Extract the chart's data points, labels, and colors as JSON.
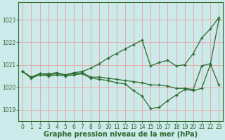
{
  "title": "Graphe pression niveau de la mer (hPa)",
  "hours": [
    0,
    1,
    2,
    3,
    4,
    5,
    6,
    7,
    8,
    9,
    10,
    11,
    12,
    13,
    14,
    15,
    16,
    17,
    18,
    19,
    20,
    21,
    22,
    23
  ],
  "line1": [
    1020.7,
    1020.45,
    1020.6,
    1020.6,
    1020.65,
    1020.55,
    1020.65,
    1020.7,
    1020.85,
    1021.05,
    1021.3,
    1021.5,
    1021.7,
    1021.9,
    1022.1,
    1020.95,
    1021.1,
    1021.2,
    1020.95,
    1021.0,
    1021.5,
    1022.2,
    1022.6,
    1023.1
  ],
  "line2": [
    1020.7,
    1020.45,
    1020.6,
    1020.55,
    1020.6,
    1020.55,
    1020.6,
    1020.65,
    1020.45,
    1020.45,
    1020.4,
    1020.35,
    1020.3,
    1020.25,
    1020.2,
    1020.1,
    1020.1,
    1020.05,
    1019.95,
    1019.95,
    1019.9,
    1020.95,
    1021.05,
    1020.1
  ],
  "line3": [
    1020.7,
    1020.4,
    1020.55,
    1020.5,
    1020.55,
    1020.5,
    1020.55,
    1020.6,
    1020.4,
    1020.35,
    1020.3,
    1020.2,
    1020.15,
    1019.85,
    1019.6,
    1019.05,
    1019.1,
    1019.4,
    1019.65,
    1019.9,
    1019.85,
    1019.95,
    1021.0,
    1023.0
  ],
  "line_color": "#2d6a2d",
  "bg_color": "#cceaea",
  "grid_color": "#e8a0a0",
  "ylim_min": 1018.5,
  "ylim_max": 1023.8,
  "yticks": [
    1019,
    1020,
    1021,
    1022,
    1023
  ],
  "xlim_min": -0.5,
  "xlim_max": 23.5,
  "marker": "+",
  "marker_size": 3,
  "marker_edge_width": 1.0,
  "line_width": 0.9,
  "tick_fontsize": 5.5,
  "title_fontsize": 7.0,
  "title_fontweight": "bold"
}
